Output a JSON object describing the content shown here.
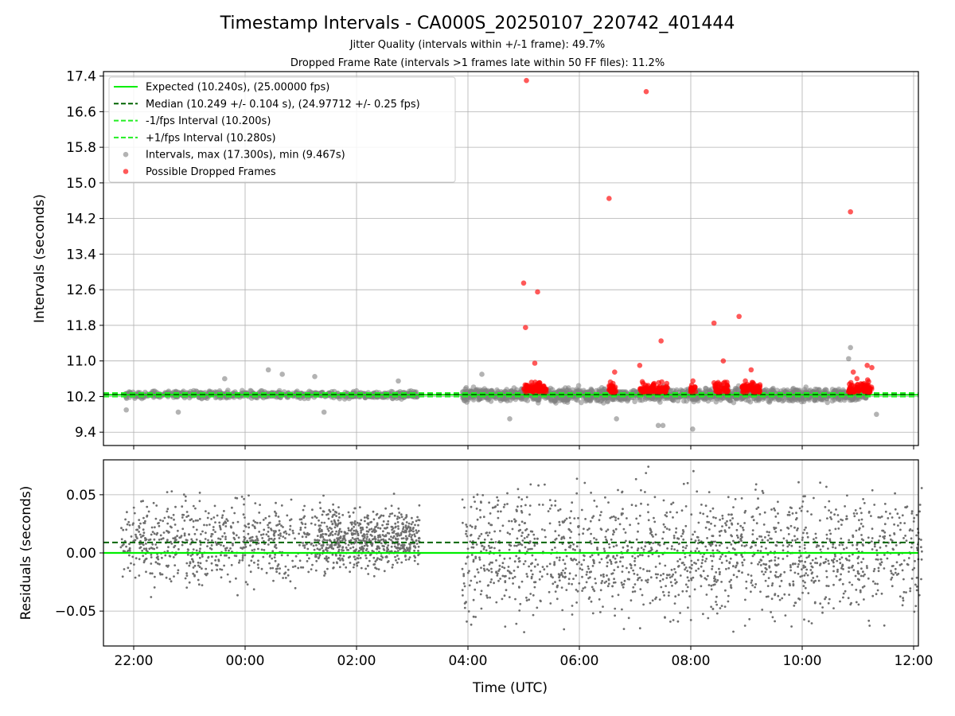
{
  "title": "Timestamp Intervals - CA000S_20250107_220742_401444",
  "subtitle_1": "Jitter Quality (intervals within +/-1 frame): 49.7%",
  "subtitle_2": "Dropped Frame Rate (intervals >1 frames late within 50 FF files): 11.2%",
  "colors": {
    "expected": "#00ee00",
    "median": "#006400",
    "fps_bounds": "#22ee22",
    "intervals": "#808080",
    "dropped": "#ff0000"
  },
  "chart_data": [
    {
      "type": "scatter",
      "panel": "top",
      "ylabel": "Intervals (seconds)",
      "ylim": [
        9.1,
        17.5
      ],
      "y_ticks": [
        "9.4",
        "10.2",
        "11.0",
        "11.8",
        "12.6",
        "13.4",
        "14.2",
        "15.0",
        "15.8",
        "16.6",
        "17.4"
      ],
      "x_ticks": [
        "22:00",
        "00:00",
        "02:00",
        "04:00",
        "06:00",
        "08:00",
        "10:00",
        "12:00"
      ],
      "grid": true,
      "legend_position": "top-left",
      "reference_lines": [
        {
          "name": "Expected (10.240s), (25.00000 fps)",
          "y": 10.24,
          "style": "solid"
        },
        {
          "name": "Median (10.249 +/- 0.104 s), (24.97712 +/- 0.25 fps)",
          "y": 10.249,
          "style": "dashed"
        },
        {
          "name": "-1/fps Interval (10.200s)",
          "y": 10.2,
          "style": "dashed"
        },
        {
          "name": "+1/fps Interval (10.280s)",
          "y": 10.28,
          "style": "dashed"
        }
      ],
      "series": [
        {
          "name": "Intervals, max (17.300s), min (9.467s)",
          "marker": "circle",
          "color": "gray",
          "dense_band": {
            "y_center": 10.24,
            "y_spread": 0.12
          },
          "outliers": [
            {
              "x": "21:52",
              "y": 9.9
            },
            {
              "x": "22:48",
              "y": 9.85
            },
            {
              "x": "23:38",
              "y": 10.6
            },
            {
              "x": "00:25",
              "y": 10.8
            },
            {
              "x": "00:40",
              "y": 10.7
            },
            {
              "x": "01:15",
              "y": 10.65
            },
            {
              "x": "01:25",
              "y": 9.85
            },
            {
              "x": "02:45",
              "y": 10.55
            },
            {
              "x": "04:15",
              "y": 10.7
            },
            {
              "x": "04:45",
              "y": 9.7
            },
            {
              "x": "06:40",
              "y": 9.7
            },
            {
              "x": "07:25",
              "y": 9.55
            },
            {
              "x": "07:30",
              "y": 9.55
            },
            {
              "x": "08:02",
              "y": 9.47
            },
            {
              "x": "10:50",
              "y": 11.05
            },
            {
              "x": "10:52",
              "y": 11.3
            },
            {
              "x": "11:20",
              "y": 9.8
            }
          ]
        },
        {
          "name": "Possible Dropped Frames",
          "marker": "circle",
          "color": "red",
          "points": [
            {
              "x": "05:03",
              "y": 17.3
            },
            {
              "x": "07:12",
              "y": 17.05
            },
            {
              "x": "06:32",
              "y": 14.65
            },
            {
              "x": "10:52",
              "y": 14.35
            },
            {
              "x": "05:00",
              "y": 12.75
            },
            {
              "x": "05:15",
              "y": 12.55
            },
            {
              "x": "05:02",
              "y": 11.75
            },
            {
              "x": "08:25",
              "y": 11.85
            },
            {
              "x": "08:52",
              "y": 12.0
            },
            {
              "x": "07:28",
              "y": 11.45
            },
            {
              "x": "05:12",
              "y": 10.95
            },
            {
              "x": "08:35",
              "y": 11.0
            },
            {
              "x": "07:05",
              "y": 10.9
            },
            {
              "x": "11:10",
              "y": 10.9
            },
            {
              "x": "06:38",
              "y": 10.75
            },
            {
              "x": "09:05",
              "y": 10.8
            },
            {
              "x": "10:55",
              "y": 10.75
            },
            {
              "x": "11:15",
              "y": 10.85
            }
          ],
          "clusters": [
            {
              "x_start": "05:00",
              "x_end": "05:25"
            },
            {
              "x_start": "06:32",
              "x_end": "06:40"
            },
            {
              "x_start": "07:05",
              "x_end": "07:35"
            },
            {
              "x_start": "08:00",
              "x_end": "08:05"
            },
            {
              "x_start": "08:25",
              "x_end": "08:40"
            },
            {
              "x_start": "08:55",
              "x_end": "09:15"
            },
            {
              "x_start": "10:50",
              "x_end": "11:15"
            }
          ]
        }
      ]
    },
    {
      "type": "scatter",
      "panel": "bottom",
      "xlabel": "Time (UTC)",
      "ylabel": "Residuals (seconds)",
      "ylim": [
        -0.08,
        0.08
      ],
      "y_ticks": [
        "−0.05",
        "0.00",
        "0.05"
      ],
      "x_ticks": [
        "22:00",
        "00:00",
        "02:00",
        "04:00",
        "06:00",
        "08:00",
        "10:00",
        "12:00"
      ],
      "grid": true,
      "reference_lines": [
        {
          "name": "Expected",
          "y": 0.0,
          "style": "solid"
        },
        {
          "name": "Median",
          "y": 0.009,
          "style": "dashed"
        }
      ],
      "series": [
        {
          "name": "Residuals",
          "marker": "point",
          "color": "dimgray",
          "y_range": [
            -0.08,
            0.08
          ]
        }
      ]
    }
  ],
  "legend": [
    {
      "label": "Expected (10.240s), (25.00000 fps)",
      "kind": "solid-line"
    },
    {
      "label": "Median (10.249 +/- 0.104 s), (24.97712 +/- 0.25 fps)",
      "kind": "dashed-dark"
    },
    {
      "label": "-1/fps Interval (10.200s)",
      "kind": "dashed-light"
    },
    {
      "label": "+1/fps Interval (10.280s)",
      "kind": "dashed-light"
    },
    {
      "label": "Intervals, max (17.300s), min (9.467s)",
      "kind": "gray-dot"
    },
    {
      "label": "Possible Dropped Frames",
      "kind": "red-dot"
    }
  ]
}
